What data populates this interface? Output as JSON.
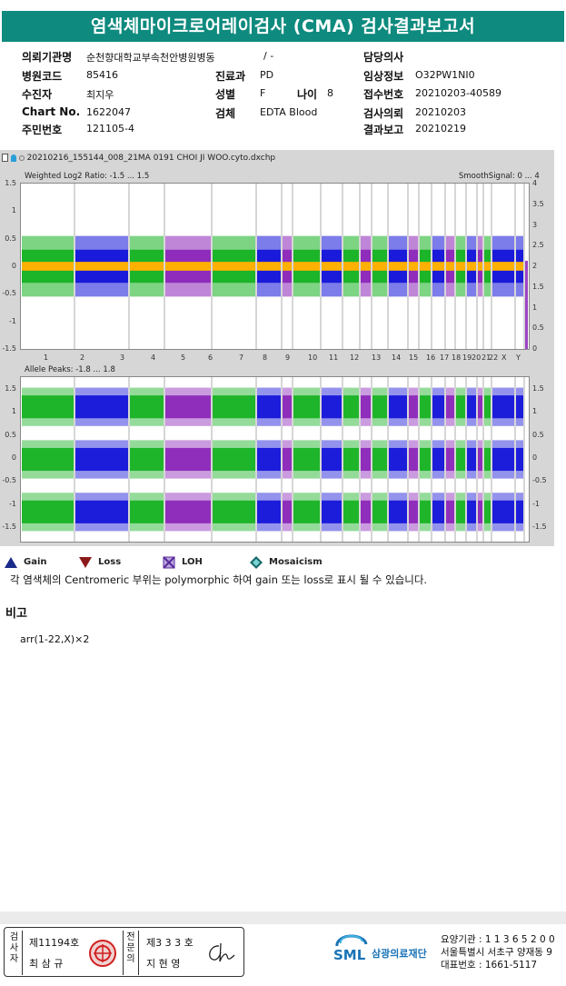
{
  "title": "염색체마이크로어레이검사 (CMA) 검사결과보고서",
  "info": {
    "institution": {
      "label": "의뢰기관명",
      "value": "순천향대학교부속천안병원병동",
      "extra": "/ -"
    },
    "doctor": {
      "label": "담당의사",
      "value": ""
    },
    "hospital_code": {
      "label": "병원코드",
      "value": "85416"
    },
    "department": {
      "label": "진료과",
      "value": "PD"
    },
    "clinical_info": {
      "label": "임상정보",
      "value": "O32PW1NI0"
    },
    "patient": {
      "label": "수진자",
      "value": "최지우"
    },
    "sex": {
      "label": "성별",
      "value": "F"
    },
    "age": {
      "label": "나이",
      "value": "8"
    },
    "receipt_no": {
      "label": "접수번호",
      "value": "20210203-40589"
    },
    "chart_no": {
      "label": "Chart No.",
      "value": "1622047"
    },
    "specimen": {
      "label": "검체",
      "value": "EDTA Blood"
    },
    "request_date": {
      "label": "검사의뢰",
      "value": "20210203"
    },
    "resident_no": {
      "label": "주민번호",
      "value": "121105-4"
    },
    "report_date": {
      "label": "결과보고",
      "value": "20210219"
    }
  },
  "plot": {
    "filename": "20210216_155144_008_21MA 0191 CHOI JI WOO.cyto.dxchp",
    "top_panel_title": "Weighted Log2 Ratio: -1.5 ... 1.5",
    "top_panel_right_title": "SmoothSignal: 0 ... 4",
    "top_left_ticks": [
      "1.5",
      "1",
      "0.5",
      "0",
      "-0.5",
      "-1",
      "-1.5"
    ],
    "top_right_ticks": [
      "4",
      "3.5",
      "3",
      "2.5",
      "2",
      "1.5",
      "1",
      "0.5",
      "0"
    ],
    "chromosomes": [
      "1",
      "2",
      "3",
      "4",
      "5",
      "6",
      "7",
      "8",
      "9",
      "10",
      "11",
      "12",
      "13",
      "14",
      "15",
      "16",
      "17",
      "18",
      "19",
      "20",
      "21",
      "22",
      "X",
      "Y"
    ],
    "bottom_panel_title": "Allele Peaks: -1.8 ... 1.8",
    "bottom_left_ticks": [
      "1.5",
      "1",
      "0.5",
      "0",
      "-0.5",
      "-1",
      "-1.5"
    ],
    "bottom_right_ticks": [
      "1.5",
      "1",
      "0.5",
      "0",
      "-0.5",
      "-1",
      "-1.5"
    ],
    "colors": {
      "green": "#12b01e",
      "blue": "#1010d8",
      "purple": "#8a22b8",
      "smooth": "#ffb000"
    }
  },
  "legend": [
    {
      "label": "Gain",
      "icon": "gain-triangle-icon",
      "color": "#1a2a8a"
    },
    {
      "label": "Loss",
      "icon": "loss-triangle-icon",
      "color": "#8a1a1a"
    },
    {
      "label": "LOH",
      "icon": "loh-cross-icon",
      "color": "#5a2a9a"
    },
    {
      "label": "Mosaicism",
      "icon": "mosaicism-diamond-icon",
      "color": "#1a6a6a"
    }
  ],
  "note": "각 염색체의 Centromeric 부위는 polymorphic 하여 gain 또는 loss로 표시 될 수 있습니다.",
  "remarks": {
    "title": "비고",
    "text": "arr(1-22,X)×2"
  },
  "footer": {
    "examiner_label": "검사자",
    "examiner_no": "제11194호",
    "examiner_name": "최 삼 규",
    "physician_label": "전문의",
    "physician_no": "제3 3 3 호",
    "physician_name": "지 현 영",
    "org_logo": "SML",
    "org_name": "삼광의료재단",
    "address_lines": [
      "요양기관 : 1 1 3 6 5 2 0 0",
      "서울특별시 서초구 양재동 9",
      "대표번호 : 1661-5117"
    ]
  }
}
